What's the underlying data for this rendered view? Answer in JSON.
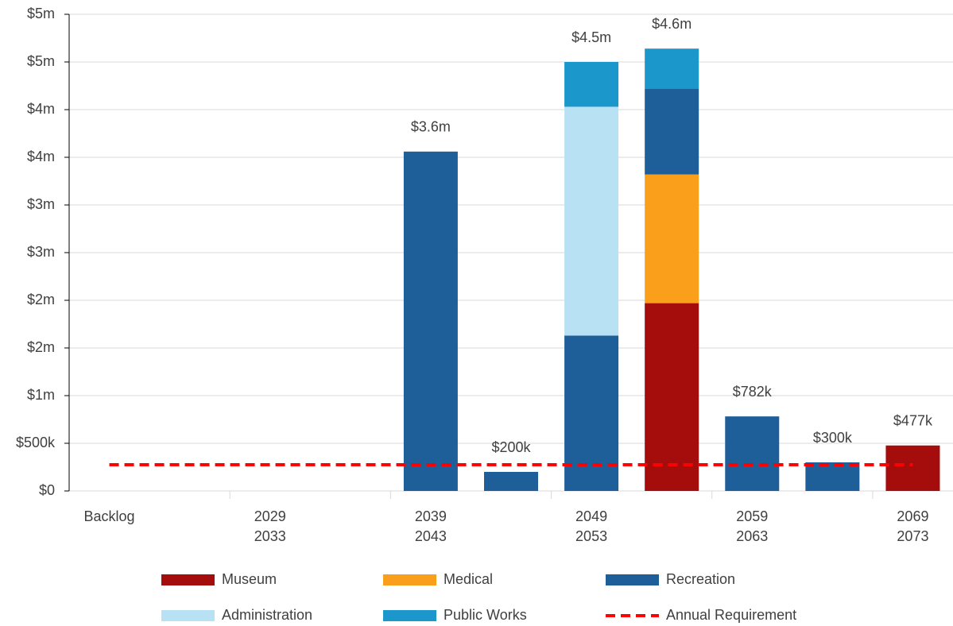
{
  "chart_data": {
    "type": "bar",
    "stacked": true,
    "categories": [
      "Backlog",
      null,
      "2029\n2033",
      null,
      "2039\n2043",
      null,
      "2049\n2053",
      null,
      "2059\n2063",
      null,
      "2069\n2073"
    ],
    "series": [
      {
        "name": "Museum",
        "color": "#a50d0d",
        "values": [
          null,
          null,
          null,
          null,
          null,
          null,
          null,
          1970000,
          null,
          null,
          477000
        ]
      },
      {
        "name": "Medical",
        "color": "#f99f1b",
        "values": [
          null,
          null,
          null,
          null,
          null,
          null,
          null,
          1350000,
          null,
          null,
          null
        ]
      },
      {
        "name": "Recreation",
        "color": "#1f5f99",
        "values": [
          null,
          null,
          null,
          null,
          3560000,
          200000,
          1630000,
          900000,
          782000,
          300000,
          null
        ]
      },
      {
        "name": "Administration",
        "color": "#b8e2f4",
        "values": [
          null,
          null,
          null,
          null,
          null,
          null,
          2400000,
          null,
          null,
          null,
          null
        ]
      },
      {
        "name": "Public Works",
        "color": "#1c97cc",
        "values": [
          null,
          null,
          null,
          null,
          null,
          null,
          470000,
          420000,
          null,
          null,
          null
        ]
      }
    ],
    "lines": [
      {
        "name": "Annual Requirement",
        "color": "#ff0000",
        "dashed": true,
        "values": [
          275000,
          275000,
          275000,
          275000,
          275000,
          275000,
          275000,
          275000,
          275000,
          275000,
          275000
        ]
      }
    ],
    "totals": [
      null,
      null,
      null,
      null,
      3560000,
      200000,
      4500000,
      4640000,
      782000,
      300000,
      477000
    ],
    "total_labels": [
      null,
      null,
      null,
      null,
      "$3.6m",
      "$200k",
      "$4.5m",
      "$4.6m",
      "$782k",
      "$300k",
      "$477k"
    ],
    "ylim": [
      0,
      5000000
    ],
    "yticks": [
      {
        "value": 0,
        "label": "$0"
      },
      {
        "value": 500000,
        "label": "$500k"
      },
      {
        "value": 1000000,
        "label": "$1m"
      },
      {
        "value": 1500000,
        "label": "$2m"
      },
      {
        "value": 2000000,
        "label": "$2m"
      },
      {
        "value": 2500000,
        "label": "$3m"
      },
      {
        "value": 3000000,
        "label": "$3m"
      },
      {
        "value": 3500000,
        "label": "$4m"
      },
      {
        "value": 4000000,
        "label": "$4m"
      },
      {
        "value": 4500000,
        "label": "$5m"
      },
      {
        "value": 5000000,
        "label": "$5m"
      }
    ],
    "grid": true,
    "legend": "bottom"
  }
}
